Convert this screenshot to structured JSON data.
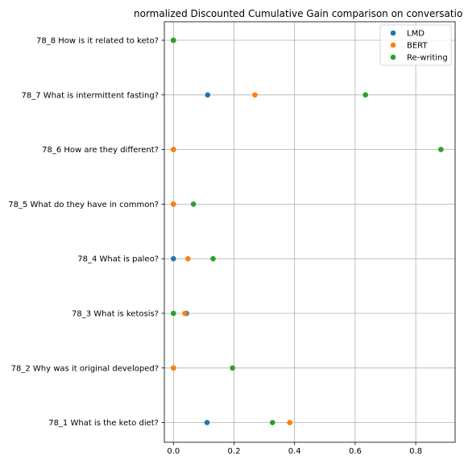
{
  "chart_data": {
    "type": "scatter",
    "title": "normalized Discounted Cumulative Gain comparison on conversatio",
    "xlabel": "",
    "ylabel": "",
    "xlim": [
      -0.03,
      0.93
    ],
    "xticks": [
      0.0,
      0.2,
      0.4,
      0.6,
      0.8
    ],
    "xtick_labels": [
      "0.0",
      "0.2",
      "0.4",
      "0.6",
      "0.8"
    ],
    "categories": [
      "78_1 What is the keto diet?",
      "78_2 Why was it original developed?",
      "78_3 What is ketosis?",
      "78_4 What is paleo?",
      "78_5 What do they have in common?",
      "78_6 How are they different?",
      "78_7 What is intermittent fasting?",
      "78_8 How is it related to keto?"
    ],
    "series": [
      {
        "name": "LMD",
        "color": "#1f77b4",
        "values": [
          0.111,
          0.0,
          0.043,
          0.0,
          0.0,
          0.0,
          0.113,
          0.0
        ]
      },
      {
        "name": "BERT",
        "color": "#ff7f0e",
        "values": [
          0.384,
          0.0,
          0.038,
          0.048,
          0.0,
          0.0,
          0.269,
          0.0
        ]
      },
      {
        "name": "Re-writing",
        "color": "#2ca02c",
        "values": [
          0.327,
          0.195,
          0.0,
          0.131,
          0.066,
          0.883,
          0.634,
          0.0
        ]
      }
    ],
    "grid": true,
    "legend_position": "top-right"
  }
}
